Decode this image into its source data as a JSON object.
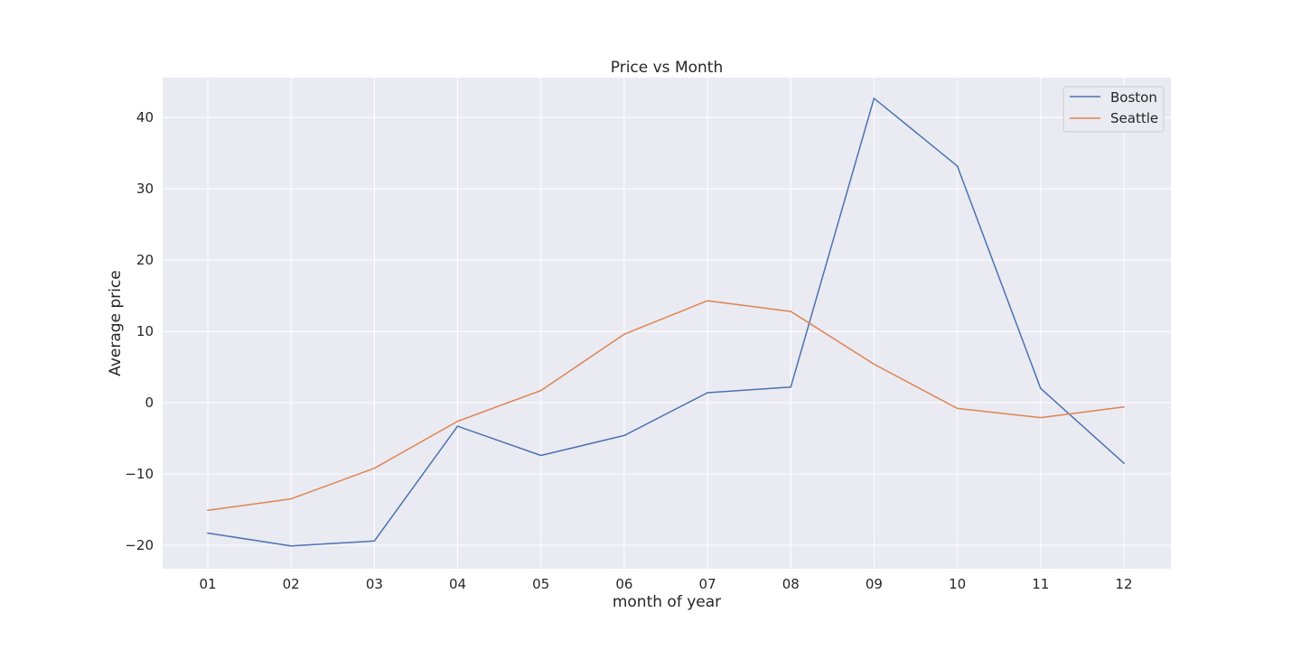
{
  "chart_data": {
    "type": "line",
    "title": "Price vs Month",
    "xlabel": "month of year",
    "ylabel": "Average price",
    "categories": [
      "01",
      "02",
      "03",
      "04",
      "05",
      "06",
      "07",
      "08",
      "09",
      "10",
      "11",
      "12"
    ],
    "yticks": [
      -20,
      -10,
      0,
      10,
      20,
      30,
      40
    ],
    "ytick_labels": [
      "−20",
      "−10",
      "0",
      "10",
      "20",
      "30",
      "40"
    ],
    "ylim": [
      -23.3,
      45.6
    ],
    "grid": true,
    "legend_position": "top-right",
    "series": [
      {
        "name": "Boston",
        "color": "#4c72b0",
        "values": [
          -18.3,
          -20.1,
          -19.4,
          -3.3,
          -7.4,
          -4.6,
          1.4,
          2.2,
          42.7,
          33.2,
          2.0,
          -8.5
        ]
      },
      {
        "name": "Seattle",
        "color": "#dd8452",
        "values": [
          -15.1,
          -13.5,
          -9.2,
          -2.6,
          1.7,
          9.6,
          14.3,
          12.8,
          5.4,
          -0.8,
          -2.1,
          -0.6
        ]
      }
    ]
  }
}
